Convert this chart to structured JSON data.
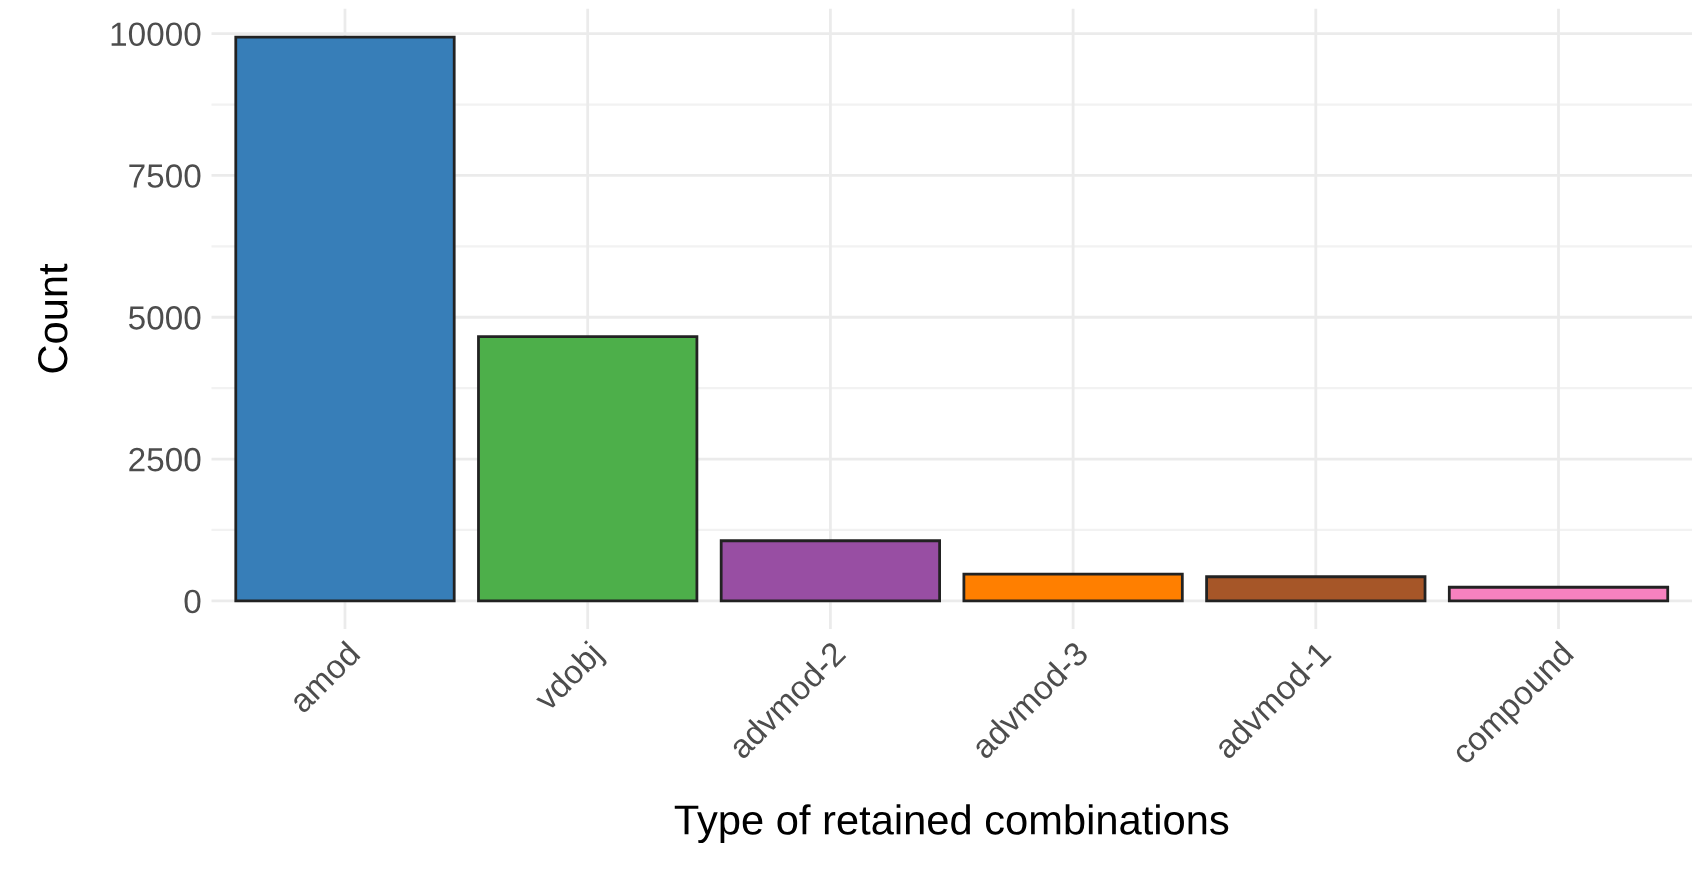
{
  "chart_data": {
    "type": "bar",
    "xlabel": "Type of retained combinations",
    "ylabel": "Count",
    "categories": [
      "amod",
      "vdobj",
      "advmod-2",
      "advmod-3",
      "advmod-1",
      "compound"
    ],
    "values": [
      9940,
      4660,
      1060,
      470,
      425,
      240
    ],
    "colors": [
      "#377eb8",
      "#4daf4a",
      "#984ea3",
      "#ff7f00",
      "#a65628",
      "#f781bf"
    ],
    "ylim": [
      -497,
      10437
    ],
    "yticks": [
      0,
      2500,
      5000,
      7500,
      10000
    ],
    "grid": true
  }
}
